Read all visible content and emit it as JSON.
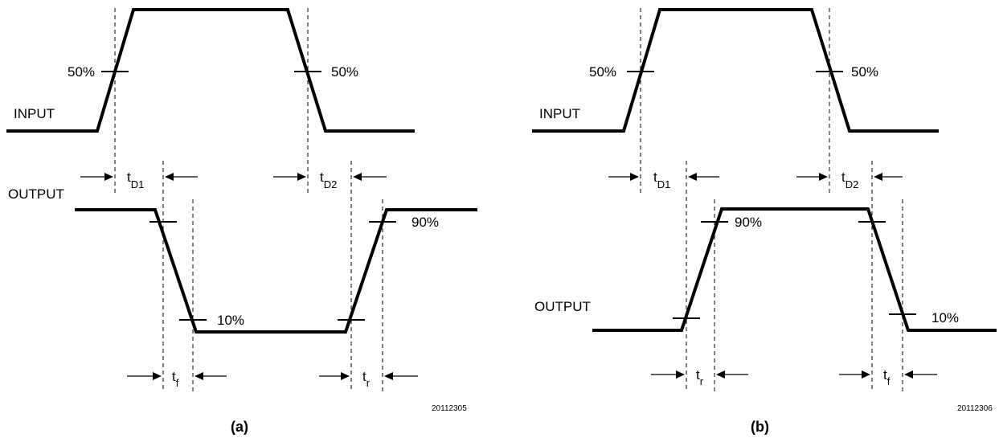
{
  "panel_a": {
    "input_label": "INPUT",
    "output_label": "OUTPUT",
    "input_level_left": "50%",
    "input_level_right": "50%",
    "output_level_high": "90%",
    "output_level_low": "10%",
    "delay_1": {
      "main": "t",
      "sub": "D1"
    },
    "delay_2": {
      "main": "t",
      "sub": "D2"
    },
    "fall_time": {
      "main": "t",
      "sub": "f"
    },
    "rise_time": {
      "main": "t",
      "sub": "r"
    },
    "figure_code": "20112305",
    "caption": "(a)"
  },
  "panel_b": {
    "input_label": "INPUT",
    "output_label": "OUTPUT",
    "input_level_left": "50%",
    "input_level_right": "50%",
    "output_level_high": "90%",
    "output_level_low": "10%",
    "delay_1": {
      "main": "t",
      "sub": "D1"
    },
    "delay_2": {
      "main": "t",
      "sub": "D2"
    },
    "rise_time": {
      "main": "t",
      "sub": "r"
    },
    "fall_time": {
      "main": "t",
      "sub": "f"
    },
    "figure_code": "20112306",
    "caption": "(b)"
  }
}
